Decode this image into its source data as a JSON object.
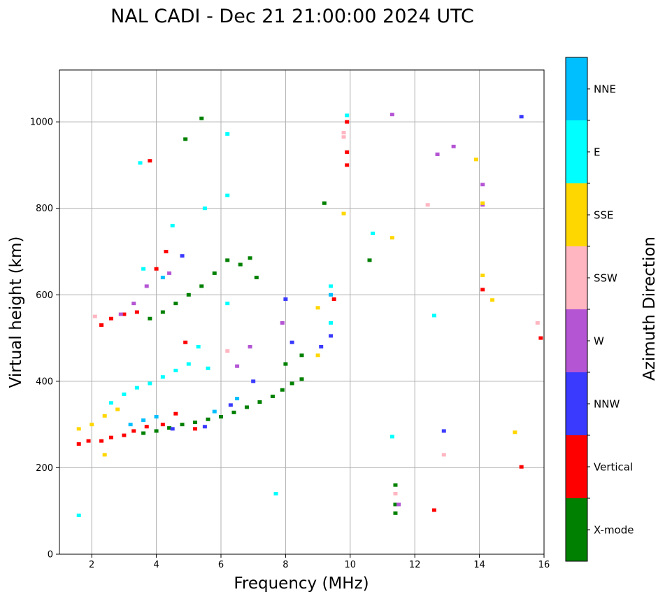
{
  "chart_data": {
    "type": "scatter",
    "title": "NAL CADI - Dec 21 21:00:00 2024 UTC",
    "xlabel": "Frequency (MHz)",
    "ylabel": "Virtual height (km)",
    "xlim": [
      1,
      16
    ],
    "ylim": [
      0,
      1120
    ],
    "xticks": [
      2,
      4,
      6,
      8,
      10,
      12,
      14,
      16
    ],
    "yticks": [
      0,
      200,
      400,
      600,
      800,
      1000
    ],
    "grid": true,
    "colorbar": {
      "label": "Azimuth Direction",
      "categories": [
        {
          "name": "X-mode",
          "color": "#008000"
        },
        {
          "name": "Vertical",
          "color": "#ff0000"
        },
        {
          "name": "NNW",
          "color": "#3a3aff"
        },
        {
          "name": "W",
          "color": "#b455d4"
        },
        {
          "name": "SSW",
          "color": "#ffb6c1"
        },
        {
          "name": "SSE",
          "color": "#ffd700"
        },
        {
          "name": "E",
          "color": "#00ffff"
        },
        {
          "name": "NNE",
          "color": "#00bfff"
        }
      ]
    },
    "series": [
      {
        "name": "X-mode",
        "points": [
          [
            3.6,
            280
          ],
          [
            4.0,
            285
          ],
          [
            4.4,
            292
          ],
          [
            4.8,
            300
          ],
          [
            5.2,
            305
          ],
          [
            5.6,
            312
          ],
          [
            6.0,
            318
          ],
          [
            6.4,
            328
          ],
          [
            6.8,
            340
          ],
          [
            7.2,
            352
          ],
          [
            7.6,
            365
          ],
          [
            7.9,
            380
          ],
          [
            8.2,
            395
          ],
          [
            8.5,
            405
          ],
          [
            8.0,
            440
          ],
          [
            8.5,
            460
          ],
          [
            3.8,
            545
          ],
          [
            4.2,
            560
          ],
          [
            4.6,
            580
          ],
          [
            5.0,
            600
          ],
          [
            5.4,
            620
          ],
          [
            5.8,
            650
          ],
          [
            6.2,
            680
          ],
          [
            6.6,
            670
          ],
          [
            6.9,
            685
          ],
          [
            7.1,
            640
          ],
          [
            11.4,
            95
          ],
          [
            11.4,
            115
          ],
          [
            11.4,
            160
          ],
          [
            9.2,
            812
          ],
          [
            10.6,
            680
          ],
          [
            5.4,
            1008
          ],
          [
            4.9,
            960
          ]
        ]
      },
      {
        "name": "Vertical",
        "points": [
          [
            1.6,
            255
          ],
          [
            1.9,
            262
          ],
          [
            2.3,
            262
          ],
          [
            2.6,
            270
          ],
          [
            3.0,
            275
          ],
          [
            3.3,
            285
          ],
          [
            3.7,
            295
          ],
          [
            4.2,
            300
          ],
          [
            4.6,
            325
          ],
          [
            5.2,
            290
          ],
          [
            2.3,
            530
          ],
          [
            2.6,
            545
          ],
          [
            3.0,
            555
          ],
          [
            3.4,
            560
          ],
          [
            4.0,
            660
          ],
          [
            4.3,
            700
          ],
          [
            4.9,
            490
          ],
          [
            9.9,
            900
          ],
          [
            9.9,
            930
          ],
          [
            9.5,
            590
          ],
          [
            14.1,
            612
          ],
          [
            15.9,
            500
          ],
          [
            12.6,
            102
          ],
          [
            15.3,
            202
          ],
          [
            3.8,
            910
          ],
          [
            9.9,
            1000
          ]
        ]
      },
      {
        "name": "NNW",
        "points": [
          [
            4.5,
            290
          ],
          [
            5.5,
            295
          ],
          [
            6.3,
            345
          ],
          [
            7.0,
            400
          ],
          [
            8.2,
            490
          ],
          [
            9.1,
            480
          ],
          [
            9.4,
            505
          ],
          [
            8.0,
            590
          ],
          [
            12.9,
            285
          ],
          [
            15.3,
            1012
          ],
          [
            4.8,
            690
          ]
        ]
      },
      {
        "name": "W",
        "points": [
          [
            3.3,
            580
          ],
          [
            3.7,
            620
          ],
          [
            4.4,
            650
          ],
          [
            6.5,
            435
          ],
          [
            6.9,
            480
          ],
          [
            7.9,
            535
          ],
          [
            12.7,
            925
          ],
          [
            13.2,
            943
          ],
          [
            14.1,
            855
          ],
          [
            14.1,
            808
          ],
          [
            11.5,
            115
          ],
          [
            2.9,
            555
          ],
          [
            11.3,
            1017
          ]
        ]
      },
      {
        "name": "SSW",
        "points": [
          [
            9.8,
            975
          ],
          [
            9.8,
            965
          ],
          [
            6.2,
            470
          ],
          [
            12.4,
            808
          ],
          [
            12.9,
            230
          ],
          [
            15.8,
            535
          ],
          [
            11.4,
            140
          ],
          [
            2.1,
            550
          ]
        ]
      },
      {
        "name": "SSE",
        "points": [
          [
            1.6,
            290
          ],
          [
            2.0,
            300
          ],
          [
            2.4,
            320
          ],
          [
            2.8,
            335
          ],
          [
            9.0,
            570
          ],
          [
            9.0,
            460
          ],
          [
            13.9,
            913
          ],
          [
            14.1,
            645
          ],
          [
            14.1,
            812
          ],
          [
            14.4,
            588
          ],
          [
            15.1,
            282
          ],
          [
            11.3,
            732
          ],
          [
            2.4,
            230
          ],
          [
            9.8,
            788
          ]
        ]
      },
      {
        "name": "E",
        "points": [
          [
            2.6,
            350
          ],
          [
            3.0,
            370
          ],
          [
            3.4,
            385
          ],
          [
            3.8,
            395
          ],
          [
            4.2,
            410
          ],
          [
            4.6,
            425
          ],
          [
            5.0,
            440
          ],
          [
            5.3,
            480
          ],
          [
            5.6,
            430
          ],
          [
            3.6,
            660
          ],
          [
            4.5,
            760
          ],
          [
            5.5,
            800
          ],
          [
            6.2,
            830
          ],
          [
            6.2,
            580
          ],
          [
            9.4,
            620
          ],
          [
            10.7,
            742
          ],
          [
            11.3,
            272
          ],
          [
            12.6,
            552
          ],
          [
            3.5,
            905
          ],
          [
            6.2,
            972
          ],
          [
            9.9,
            1015
          ],
          [
            9.4,
            535
          ],
          [
            1.6,
            90
          ],
          [
            7.7,
            140
          ]
        ]
      },
      {
        "name": "NNE",
        "points": [
          [
            3.2,
            300
          ],
          [
            3.6,
            310
          ],
          [
            4.0,
            318
          ],
          [
            6.5,
            360
          ],
          [
            5.8,
            330
          ],
          [
            4.2,
            640
          ],
          [
            9.4,
            600
          ]
        ]
      }
    ]
  }
}
